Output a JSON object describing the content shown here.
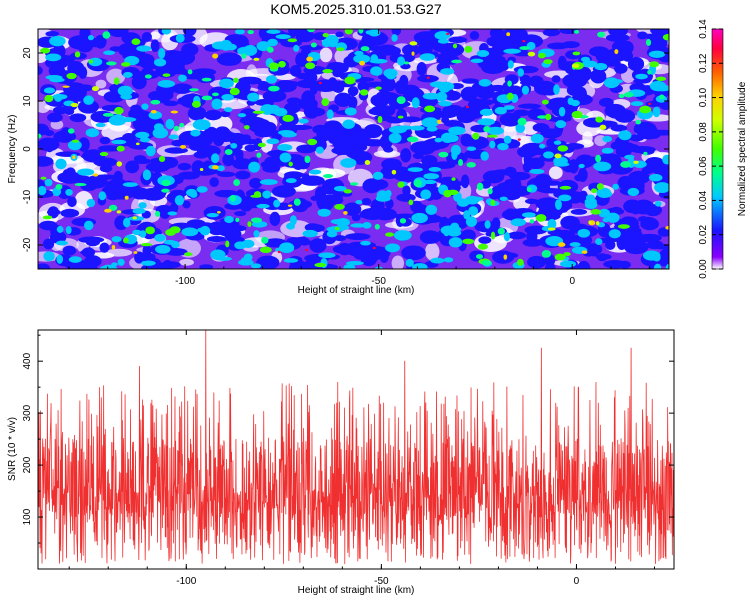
{
  "title": "KOM5.2025.310.01.53.G27",
  "chart_data": [
    {
      "type": "heatmap",
      "title": "KOM5.2025.310.01.53.G27",
      "xlabel": "Height of straight line (km)",
      "ylabel": "Frequency (Hz)",
      "xlim": [
        -138,
        25
      ],
      "ylim": [
        -25,
        25
      ],
      "xticks": [
        -100,
        -50,
        0
      ],
      "yticks": [
        -20,
        -10,
        0,
        10,
        20
      ],
      "colorbar": {
        "label": "Normalized spectral amplitude",
        "range": [
          0,
          0.14
        ],
        "ticks": [
          "0.00",
          "0.02",
          "0.04",
          "0.06",
          "0.08",
          "0.10",
          "0.12",
          "0.14"
        ],
        "colors": [
          "#ffffff",
          "#8a00ff",
          "#1a14ff",
          "#00c8ff",
          "#00ff8c",
          "#40ff00",
          "#d0ff00",
          "#ffd000",
          "#ff6000",
          "#ff0040",
          "#ff00c0"
        ]
      }
    },
    {
      "type": "line",
      "xlabel": "Height of straight line (km)",
      "ylabel": "SNR (10 * v/v)",
      "xlim": [
        -138,
        25
      ],
      "ylim": [
        0,
        460
      ],
      "xticks": [
        -100,
        -50,
        0
      ],
      "yticks": [
        100,
        200,
        300,
        400
      ],
      "line_color": "#f03030",
      "summary": {
        "baseline": 130,
        "min": 10,
        "max": 460,
        "max_at_x": -95,
        "peaks": [
          {
            "x": -95,
            "y": 460
          },
          {
            "x": -9,
            "y": 425
          },
          {
            "x": 14,
            "y": 425
          },
          {
            "x": -44,
            "y": 400
          },
          {
            "x": -112,
            "y": 390
          }
        ]
      }
    }
  ]
}
